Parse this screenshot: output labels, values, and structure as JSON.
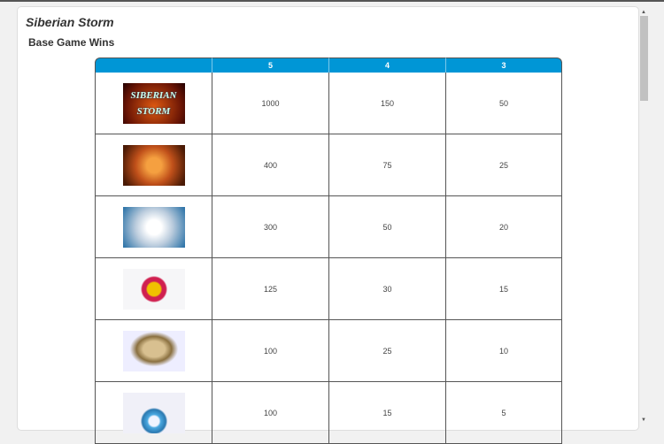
{
  "title": "Siberian Storm",
  "section": "Base Game Wins",
  "table": {
    "headers": [
      "",
      "5",
      "4",
      "3"
    ],
    "rows": [
      {
        "symbol": "siberian-storm-logo",
        "logo_text": [
          "SIBERIAN",
          "STORM"
        ],
        "values": [
          "1000",
          "150",
          "50"
        ]
      },
      {
        "symbol": "orange-tiger",
        "values": [
          "400",
          "75",
          "25"
        ]
      },
      {
        "symbol": "white-tiger",
        "values": [
          "300",
          "50",
          "20"
        ]
      },
      {
        "symbol": "amber-bracelet",
        "values": [
          "125",
          "30",
          "15"
        ]
      },
      {
        "symbol": "horn",
        "values": [
          "100",
          "25",
          "10"
        ]
      },
      {
        "symbol": "blue-amulet",
        "values": [
          "100",
          "15",
          "5"
        ]
      }
    ]
  },
  "colors": {
    "header": "#0096d6"
  }
}
